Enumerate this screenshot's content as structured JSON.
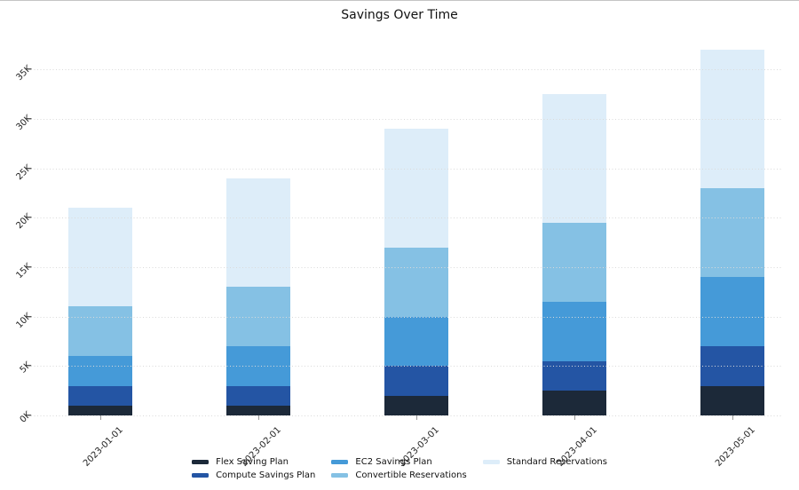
{
  "chart_data": {
    "type": "bar",
    "stacked": true,
    "title": "Savings Over Time",
    "categories": [
      "2023-01-01",
      "2023-02-01",
      "2023-03-01",
      "2023-04-01",
      "2023-05-01"
    ],
    "series": [
      {
        "name": "Flex Saving Plan",
        "color": "#1c2939",
        "values": [
          1000,
          1000,
          2000,
          2500,
          3000
        ]
      },
      {
        "name": "Compute Savings Plan",
        "color": "#2455a4",
        "values": [
          2000,
          2000,
          3000,
          3000,
          4000
        ]
      },
      {
        "name": "EC2 Savings Plan",
        "color": "#459ad8",
        "values": [
          3000,
          4000,
          5000,
          6000,
          7000
        ]
      },
      {
        "name": "Convertible Reservations",
        "color": "#85c1e4",
        "values": [
          5000,
          6000,
          7000,
          8000,
          9000
        ]
      },
      {
        "name": "Standard Reservations",
        "color": "#ddedf9",
        "values": [
          10000,
          11000,
          12000,
          13000,
          14000
        ]
      }
    ],
    "totals": [
      21000,
      24000,
      29000,
      32500,
      37000
    ],
    "y_ticks": [
      {
        "label": "0K",
        "value": 0
      },
      {
        "label": "5K",
        "value": 5000
      },
      {
        "label": "10K",
        "value": 10000
      },
      {
        "label": "15K",
        "value": 15000
      },
      {
        "label": "20K",
        "value": 20000
      },
      {
        "label": "25K",
        "value": 25000
      },
      {
        "label": "30K",
        "value": 30000
      },
      {
        "label": "35K",
        "value": 35000
      }
    ],
    "ylim": [
      0,
      37500
    ],
    "grid": "horizontal-dotted",
    "tick_label_rotation_deg": 45,
    "legend_position": "bottom-center",
    "legend_columns": 3
  }
}
